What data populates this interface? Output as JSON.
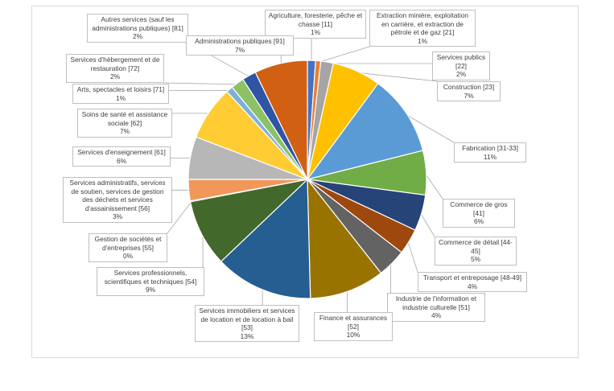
{
  "chart_data": {
    "type": "pie",
    "title": "",
    "slices": [
      {
        "label": "Agriculture, foresterie, pêche et chasse [11]",
        "pct_label": "1%",
        "value": 1.1,
        "color": "#4472c4"
      },
      {
        "label": "Extraction minière, exploitation en carrière, et extraction de pétrole et de gaz [21]",
        "pct_label": "1%",
        "value": 0.7,
        "color": "#ed7d31"
      },
      {
        "label": "Services publics [22]",
        "pct_label": "2%",
        "value": 1.7,
        "color": "#a5a5a5"
      },
      {
        "label": "Construction [23]",
        "pct_label": "7%",
        "value": 6.6,
        "color": "#ffc000"
      },
      {
        "label": "Fabrication [31-33]",
        "pct_label": "11%",
        "value": 11.0,
        "color": "#5b9bd5"
      },
      {
        "label": "Commerce de gros [41]",
        "pct_label": "6%",
        "value": 6.0,
        "color": "#70ad47"
      },
      {
        "label": "Commerce de détail [44-45]",
        "pct_label": "5%",
        "value": 4.9,
        "color": "#264478"
      },
      {
        "label": "Transport et entreposage [48-49]",
        "pct_label": "4%",
        "value": 3.5,
        "color": "#9e480e"
      },
      {
        "label": "Industrie de l'information et industrie culturelle [51]",
        "pct_label": "4%",
        "value": 3.9,
        "color": "#636363"
      },
      {
        "label": "Finance et assurances [52]",
        "pct_label": "10%",
        "value": 10.2,
        "color": "#997300"
      },
      {
        "label": "Services immobiliers et services de location et de location à bail [53]",
        "pct_label": "13%",
        "value": 13.3,
        "color": "#255e91"
      },
      {
        "label": "Services professionnels, scientifiques et techniques [54]",
        "pct_label": "9%",
        "value": 9.1,
        "color": "#43682b"
      },
      {
        "label": "Gestion de sociétés et d'entreprises [55]",
        "pct_label": "0%",
        "value": 0.1,
        "color": "#698ed0"
      },
      {
        "label": "Services administratifs, services de soutien, services de gestion des déchets et services d'assainissement [56]",
        "pct_label": "3%",
        "value": 2.9,
        "color": "#f1975a"
      },
      {
        "label": "Services d'enseignement [61]",
        "pct_label": "6%",
        "value": 5.8,
        "color": "#b7b7b7"
      },
      {
        "label": "Soins de santé et assistance sociale [62]",
        "pct_label": "7%",
        "value": 7.4,
        "color": "#ffcd33"
      },
      {
        "label": "Arts, spectacles et loisirs [71]",
        "pct_label": "1%",
        "value": 0.9,
        "color": "#7cafdd"
      },
      {
        "label": "Services d'hébergement et de restauration [72]",
        "pct_label": "2%",
        "value": 1.8,
        "color": "#8cc168"
      },
      {
        "label": "Autres services (sauf les administrations publiques) [81]",
        "pct_label": "2%",
        "value": 1.9,
        "color": "#2f55a4"
      },
      {
        "label": "Administrations publiques [91]",
        "pct_label": "7%",
        "value": 7.2,
        "color": "#d26012"
      }
    ]
  }
}
